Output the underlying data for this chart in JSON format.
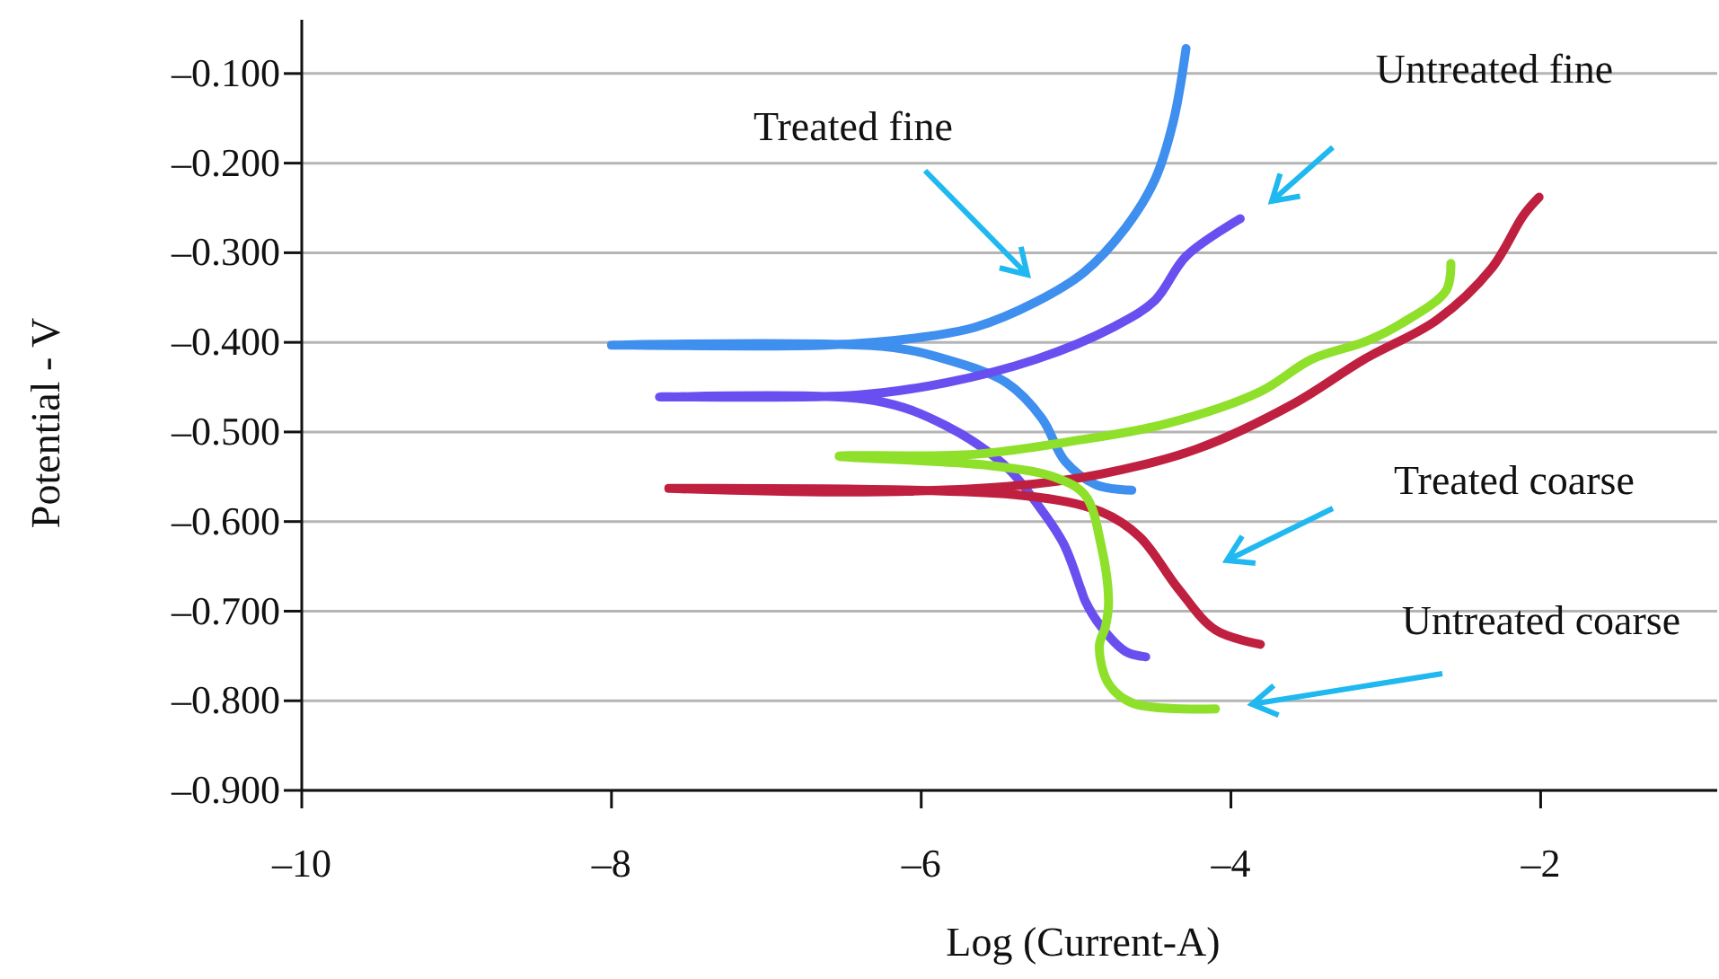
{
  "chart_data": {
    "type": "line",
    "xlabel": "Log (Current-A)",
    "ylabel": "Potential - V",
    "xlim": [
      -10,
      -0.86
    ],
    "ylim": [
      -0.9,
      -0.04
    ],
    "xticks": [
      {
        "value": -10,
        "label": "–10"
      },
      {
        "value": -8,
        "label": "–8"
      },
      {
        "value": -6,
        "label": "–6"
      },
      {
        "value": -4,
        "label": "–4"
      },
      {
        "value": -2,
        "label": "–2"
      }
    ],
    "yticks": [
      {
        "value": -0.1,
        "label": "–0.100"
      },
      {
        "value": -0.2,
        "label": "–0.200"
      },
      {
        "value": -0.3,
        "label": "–0.300"
      },
      {
        "value": -0.4,
        "label": "–0.400"
      },
      {
        "value": -0.5,
        "label": "–0.500"
      },
      {
        "value": -0.6,
        "label": "–0.600"
      },
      {
        "value": -0.7,
        "label": "–0.700"
      },
      {
        "value": -0.8,
        "label": "–0.800"
      },
      {
        "value": -0.9,
        "label": "–0.900"
      }
    ],
    "grid": "y",
    "annotations": [
      "Treated fine",
      "Untreated fine",
      "Treated coarse",
      "Untreated coarse"
    ],
    "marker": "none",
    "line_style": "solid",
    "series": [
      {
        "color": "#3f8fef",
        "x": [
          -4.64,
          -4.87,
          -5.07,
          -5.22,
          -5.45,
          -5.84,
          -6.23,
          -8.0,
          -6.61,
          -6.03,
          -5.65,
          -5.26,
          -4.95,
          -4.68,
          -4.49,
          -4.37,
          -4.29
        ],
        "values": [
          -0.565,
          -0.559,
          -0.533,
          -0.485,
          -0.445,
          -0.419,
          -0.405,
          -0.403,
          -0.403,
          -0.395,
          -0.383,
          -0.355,
          -0.322,
          -0.272,
          -0.218,
          -0.152,
          -0.072
        ]
      },
      {
        "color": "#6a4ff0",
        "x": [
          -4.55,
          -4.68,
          -4.84,
          -4.94,
          -4.97,
          -5.08,
          -5.24,
          -5.45,
          -5.84,
          -6.3,
          -7.69,
          -6.42,
          -5.84,
          -5.26,
          -4.76,
          -4.49,
          -4.29,
          -3.94
        ],
        "values": [
          -0.751,
          -0.745,
          -0.717,
          -0.689,
          -0.675,
          -0.625,
          -0.583,
          -0.539,
          -0.493,
          -0.465,
          -0.461,
          -0.459,
          -0.445,
          -0.419,
          -0.383,
          -0.353,
          -0.304,
          -0.262
        ]
      },
      {
        "color": "#c0203f",
        "x": [
          -3.81,
          -4.1,
          -4.34,
          -4.59,
          -4.84,
          -5.34,
          -7.63,
          -6.48,
          -5.45,
          -4.84,
          -4.22,
          -3.6,
          -3.14,
          -2.67,
          -2.32,
          -2.11,
          -2.01
        ],
        "values": [
          -0.737,
          -0.721,
          -0.675,
          -0.617,
          -0.589,
          -0.571,
          -0.563,
          -0.567,
          -0.561,
          -0.547,
          -0.519,
          -0.469,
          -0.419,
          -0.375,
          -0.318,
          -0.258,
          -0.238
        ]
      },
      {
        "color": "#8ee02a",
        "x": [
          -4.1,
          -4.63,
          -4.79,
          -4.85,
          -4.81,
          -4.79,
          -4.84,
          -4.94,
          -5.13,
          -5.58,
          -6.53,
          -5.66,
          -5.05,
          -4.42,
          -3.81,
          -3.48,
          -3.13,
          -2.9,
          -2.61,
          -2.58
        ],
        "values": [
          -0.809,
          -0.803,
          -0.781,
          -0.739,
          -0.717,
          -0.689,
          -0.625,
          -0.571,
          -0.551,
          -0.537,
          -0.527,
          -0.525,
          -0.511,
          -0.491,
          -0.455,
          -0.419,
          -0.399,
          -0.379,
          -0.342,
          -0.312
        ]
      }
    ]
  }
}
